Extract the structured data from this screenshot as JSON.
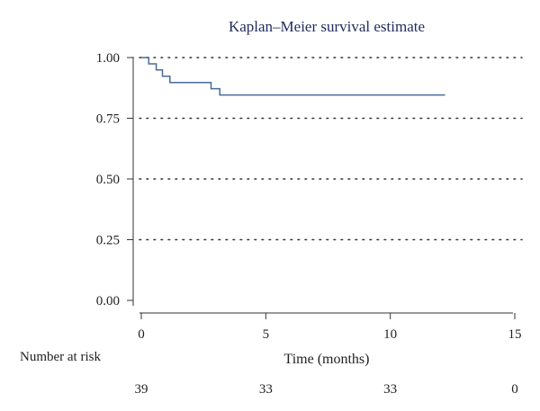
{
  "chart_data": {
    "type": "line",
    "title": "Kaplan–Meier survival estimate",
    "xlabel": "Time (months)",
    "ylabel": "",
    "xlim": [
      0,
      15
    ],
    "ylim": [
      0,
      1
    ],
    "xticks": [
      "0",
      "5",
      "10",
      "15"
    ],
    "yticks": [
      "0.00",
      "0.25",
      "0.50",
      "0.75",
      "1.00"
    ],
    "grid": "horizontal dotted",
    "line_color": "#4a6a9b",
    "series": [
      {
        "step": true,
        "x": [
          0,
          0.3,
          0.6,
          0.85,
          1.15,
          2.8,
          3.15,
          12.2
        ],
        "y": [
          1.0,
          0.974,
          0.949,
          0.923,
          0.897,
          0.872,
          0.846,
          0.846
        ]
      }
    ],
    "risk_table": {
      "label": "Number at risk",
      "times": [
        0,
        5,
        10,
        15
      ],
      "counts": [
        "39",
        "33",
        "33",
        "0"
      ]
    }
  }
}
